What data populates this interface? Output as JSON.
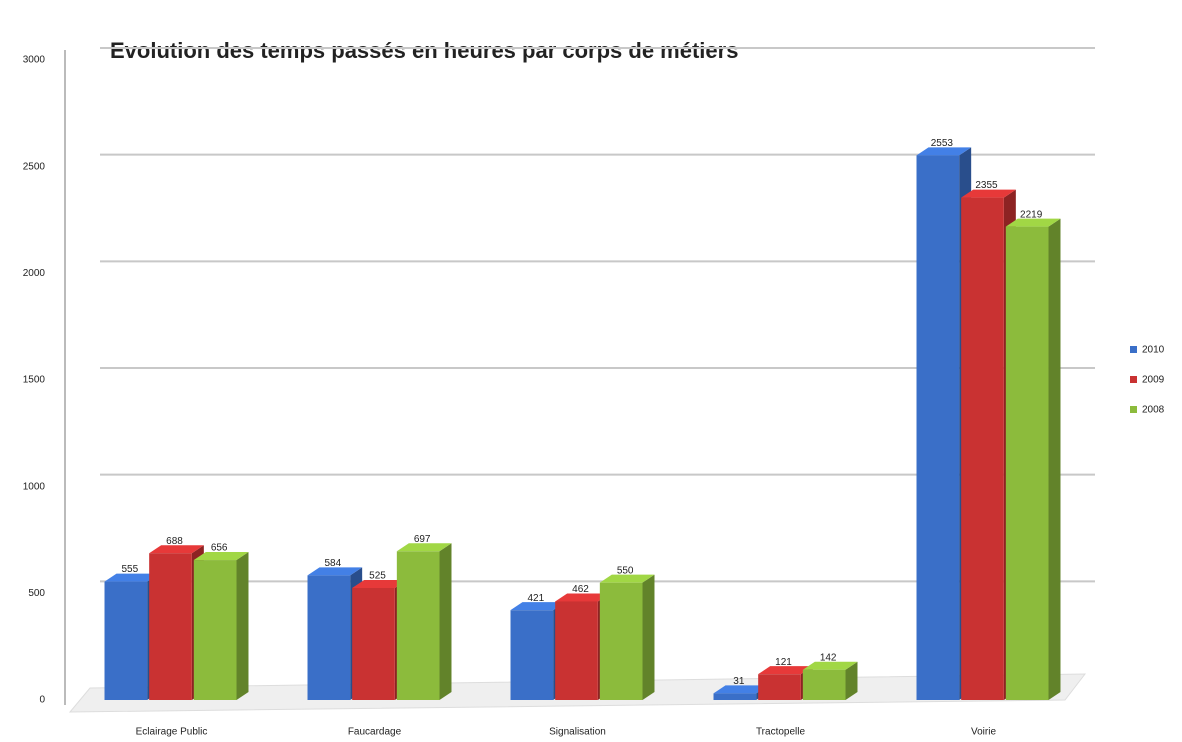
{
  "chart_data": {
    "type": "bar3d",
    "title": "Evolution des temps passés en heures par corps de métiers",
    "categories": [
      "Eclairage Public",
      "Faucardage",
      "Signalisation",
      "Tractopelle",
      "Voirie"
    ],
    "series": [
      {
        "name": "2010",
        "color": "#3a6fc8",
        "values": [
          555,
          584,
          421,
          31,
          2553
        ]
      },
      {
        "name": "2009",
        "color": "#c93232",
        "values": [
          688,
          525,
          462,
          121,
          2355
        ]
      },
      {
        "name": "2008",
        "color": "#8cbb3c",
        "values": [
          656,
          697,
          550,
          142,
          2219
        ]
      }
    ],
    "ylim": [
      0,
      3000
    ],
    "yticks": [
      0,
      500,
      1000,
      1500,
      2000,
      2500,
      3000
    ],
    "grid": true,
    "legend": "right"
  }
}
